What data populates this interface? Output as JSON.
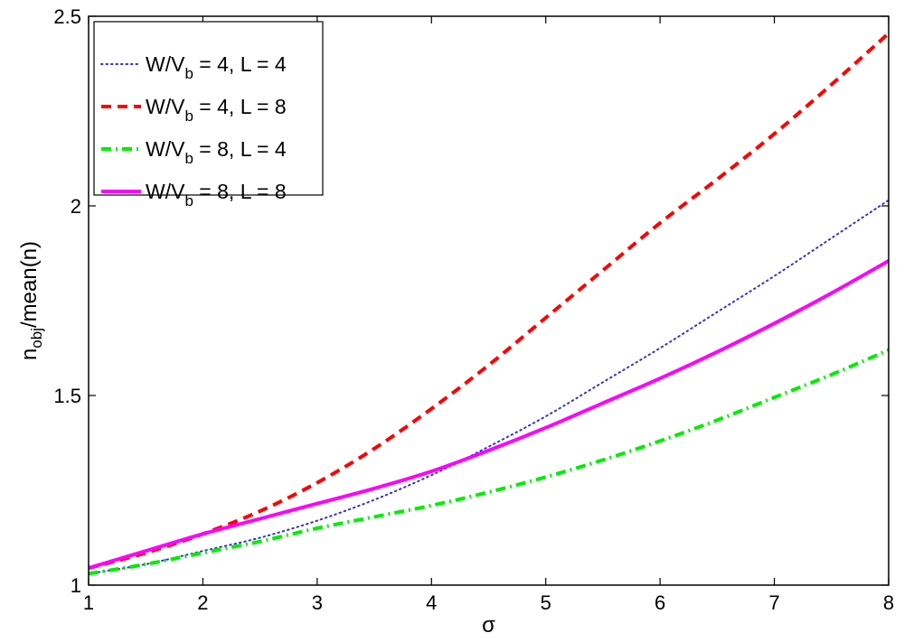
{
  "chart_data": {
    "type": "line",
    "xlabel": "σ",
    "ylabel": "n_obj/mean(n)",
    "ylabel_main": "n",
    "ylabel_sub": "obj",
    "ylabel_rest": "/mean(n)",
    "xlim": [
      1,
      8
    ],
    "ylim": [
      1,
      2.5
    ],
    "xticks": [
      1,
      2,
      3,
      4,
      5,
      6,
      7,
      8
    ],
    "yticks": [
      1,
      1.5,
      2,
      2.5
    ],
    "ytick_labels": [
      "1",
      "1.5",
      "2",
      "2.5"
    ],
    "grid": false,
    "legend_position": "top-left",
    "x": [
      1,
      1.5,
      2,
      2.5,
      3,
      3.5,
      4,
      4.5,
      5,
      5.5,
      6,
      6.5,
      7,
      7.5,
      8
    ],
    "series": [
      {
        "name": "W/V_b = 4, L = 4",
        "label_main": "W/V",
        "label_sub": "b",
        "label_rest": " = 4, L = 4",
        "color": "#3333cc",
        "style": "dotted",
        "values": [
          1.03,
          1.055,
          1.09,
          1.125,
          1.17,
          1.225,
          1.29,
          1.365,
          1.445,
          1.535,
          1.625,
          1.72,
          1.815,
          1.915,
          2.015
        ]
      },
      {
        "name": "W/V_b = 4, L = 8",
        "label_main": "W/V",
        "label_sub": "b",
        "label_rest": " = 4, L = 8",
        "color": "#ff0000",
        "style": "dashed",
        "values": [
          1.045,
          1.085,
          1.135,
          1.195,
          1.27,
          1.36,
          1.465,
          1.58,
          1.705,
          1.83,
          1.955,
          2.07,
          2.19,
          2.32,
          2.455
        ]
      },
      {
        "name": "W/V_b = 8, L = 4",
        "label_main": "W/V",
        "label_sub": "b",
        "label_rest": " = 8, L = 4",
        "color": "#00ee00",
        "style": "dashdot",
        "values": [
          1.03,
          1.055,
          1.085,
          1.115,
          1.15,
          1.18,
          1.21,
          1.245,
          1.285,
          1.33,
          1.38,
          1.435,
          1.495,
          1.555,
          1.62
        ]
      },
      {
        "name": "W/V_b = 8, L = 8",
        "label_main": "W/V",
        "label_sub": "b",
        "label_rest": " = 8, L = 8",
        "color": "#ff00ff",
        "style": "solid",
        "values": [
          1.045,
          1.09,
          1.135,
          1.175,
          1.215,
          1.255,
          1.3,
          1.355,
          1.415,
          1.48,
          1.545,
          1.615,
          1.69,
          1.77,
          1.855
        ]
      }
    ]
  }
}
